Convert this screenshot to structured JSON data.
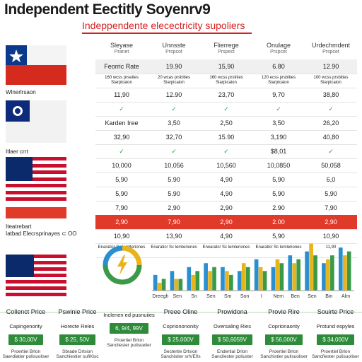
{
  "header": {
    "title": "Independent Eectitly Soyenrv9",
    "subtitle": "Indeppendente elecectricity supoliers"
  },
  "columns": [
    {
      "name": "Sleyase",
      "sub": "Pranet"
    },
    {
      "name": "Unnsste",
      "sub": "Prspcot"
    },
    {
      "name": "Flierrege",
      "sub": "Prspect"
    },
    {
      "name": "Onulage",
      "sub": "Prspcet"
    },
    {
      "name": "Urdechmdent",
      "sub": "Prspcet"
    }
  ],
  "side_labels": {
    "label1": "Wlnerlrsaon",
    "label2": "Itlaer crrt",
    "label3": "Iteatrebart",
    "label4": "Iatbad Elecrsprinayes  ⊂ OO"
  },
  "rows": [
    {
      "style": "shaded",
      "cells": [
        "Feorric Rate",
        "19.90",
        "15,90",
        "6.80",
        "12.90"
      ]
    },
    {
      "style": "note",
      "cells": [
        "160 wcss prseties\nSiarpicaion",
        "20 wcas prsbities\nSiarpicaion",
        "160 wcss prstities\nSiarpicaion",
        "120 ecss prsbities\nSiarpicaion",
        "100 wcss prsbities\nSiarpicaion"
      ]
    },
    {
      "style": "",
      "cells": [
        "11,90",
        "12.90",
        "23,70",
        "9,70",
        "38,80"
      ]
    },
    {
      "style": "check",
      "cells": [
        "✓",
        "✓",
        "✓",
        "✓",
        "✓"
      ]
    },
    {
      "style": "",
      "cells": [
        "Karden Iree",
        "3,50",
        "2,50",
        "3,50",
        "26,20"
      ]
    },
    {
      "style": "",
      "cells": [
        "32,90",
        "32,70",
        "15.90",
        "3,190",
        "40,80"
      ]
    },
    {
      "style": "check",
      "cells": [
        "✓",
        "✓",
        "✓",
        "$8,01",
        "✓"
      ]
    },
    {
      "style": "",
      "cells": [
        "10,000",
        "10,056",
        "10,560",
        "10,0850",
        "50,058"
      ]
    },
    {
      "style": "",
      "cells": [
        "5,90",
        "5.90",
        "4,90",
        "5,90",
        "6,0"
      ]
    },
    {
      "style": "",
      "cells": [
        "5,90",
        "5.90",
        "4,90",
        "5,90",
        "5,90"
      ]
    },
    {
      "style": "",
      "cells": [
        "7,90",
        "2,90",
        "2,90",
        "2.90",
        "7,90"
      ]
    },
    {
      "style": "red",
      "cells": [
        "2,90",
        "7,90",
        "2,90",
        "2.00",
        "2,90"
      ]
    },
    {
      "style": "",
      "cells": [
        "10,90",
        "13,90",
        "4,90",
        "5,90",
        "10,90"
      ]
    },
    {
      "style": "note",
      "cells": [
        "Enaraticr Sc lemlteriones",
        "Enaraticr Sc lemteriones",
        "Erwaratcr Sc lemleriones",
        "Enaraticr Sc lemleriones",
        "11,90"
      ]
    }
  ],
  "chart_data": {
    "type": "bar",
    "title": "",
    "xlabel": "",
    "ylabel": "",
    "categories": [
      "Dreegh",
      "Sen",
      "Sn",
      "Sen",
      "Sm",
      "Son",
      "I",
      "Nem",
      "Ben",
      "Sen",
      "Bin",
      "Alm"
    ],
    "series": [
      {
        "color": "#2a8fd0",
        "values": [
          4,
          5,
          6,
          7,
          6,
          5,
          8,
          6,
          9,
          10,
          7,
          11
        ]
      },
      {
        "color": "#e8b41c",
        "values": [
          2,
          3,
          4,
          5,
          5,
          7,
          6,
          8,
          7,
          12,
          8,
          9
        ]
      },
      {
        "color": "#3a9a48",
        "values": [
          3,
          3,
          5,
          6,
          4,
          6,
          5,
          7,
          8,
          9,
          9,
          10
        ]
      }
    ],
    "ylim": [
      0,
      13
    ]
  },
  "cards": [
    {
      "head": "Collenct Price",
      "sub": "Capingenority",
      "price": "$ 30,00V",
      "foot": "Proertiel Brlon\nSaerdiatier polisuoliser"
    },
    {
      "head": "Pswinie Price",
      "sub": "Horecte Reles",
      "price": "$ 25, 50V",
      "foot": "Sbrade Drlsion\nSanchiestier sufiKisc"
    },
    {
      "head": "",
      "sub": "Inclenen ed pusnuiies",
      "price": "6, 9/4, 99V",
      "foot": "Proertiel Brlon\nSancliesier pulisuelier"
    },
    {
      "head": "Preee Oline",
      "sub": "Coprionononity",
      "price": "$ 25,000V",
      "foot": "Sectertie Drlsion\nSanchistier sriVE0s"
    },
    {
      "head": "Prowidona",
      "sub": "Oversaling Ries",
      "price": "$ 50,6059V",
      "foot": "Endertial Drlon\nSancliester poliuster"
    },
    {
      "head": "Provie Rire",
      "sub": "Coprionaonty",
      "price": "$ 56,000V",
      "foot": "Proertiel Brlon\nSanchistier pulisuoliser"
    },
    {
      "head": "Souirte Price",
      "sub": "Protund espyles",
      "price": "$ 34,000V",
      "foot": "Proertiel Brlon\nSancfiester pulisuoliser"
    }
  ]
}
